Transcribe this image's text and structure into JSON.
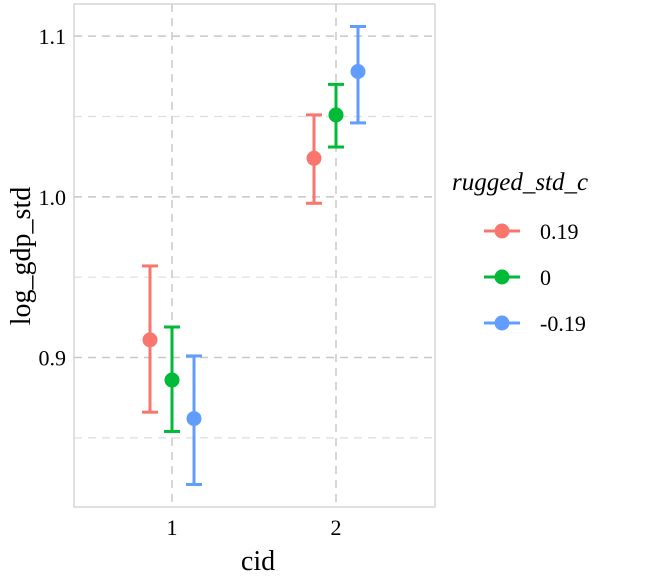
{
  "chart_data": {
    "type": "scatter",
    "title": "",
    "xlabel": "cid",
    "ylabel": "log_gdp_std",
    "categories": [
      "1",
      "2"
    ],
    "yticks": [
      "0.9",
      "1.0",
      "1.1"
    ],
    "ytick_values": [
      0.9,
      1.0,
      1.1
    ],
    "ylim": [
      0.807,
      1.12
    ],
    "grid": true,
    "legend": {
      "title": "rugged_std_c",
      "placement": "right"
    },
    "series": [
      {
        "name": "0.19",
        "color": "#F8766D",
        "values": [
          0.911,
          1.024
        ],
        "lower": [
          0.866,
          0.996
        ],
        "upper": [
          0.957,
          1.051
        ]
      },
      {
        "name": "0",
        "color": "#00BA38",
        "values": [
          0.886,
          1.051
        ],
        "lower": [
          0.854,
          1.031
        ],
        "upper": [
          0.919,
          1.07
        ]
      },
      {
        "name": "-0.19",
        "color": "#619CFF",
        "values": [
          0.862,
          1.078
        ],
        "lower": [
          0.821,
          1.046
        ],
        "upper": [
          0.901,
          1.106
        ]
      }
    ]
  }
}
